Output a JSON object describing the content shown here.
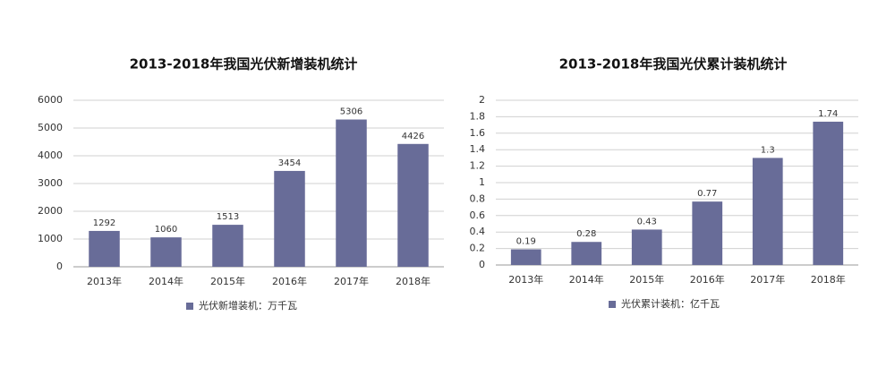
{
  "chart_data": [
    {
      "type": "bar",
      "title": "2013-2018年我国光伏新增装机统计",
      "categories": [
        "2013年",
        "2014年",
        "2015年",
        "2016年",
        "2017年",
        "2018年"
      ],
      "series": [
        {
          "name": "光伏新增装机：万千瓦",
          "color": "#686c98",
          "values": [
            1292,
            1060,
            1513,
            3454,
            5306,
            4426
          ]
        }
      ],
      "ylim": [
        0,
        6000
      ],
      "yticks": [
        0,
        1000,
        2000,
        3000,
        4000,
        5000,
        6000
      ],
      "grid": true,
      "legend": "bottom"
    },
    {
      "type": "bar",
      "title": "2013-2018年我国光伏累计装机统计",
      "categories": [
        "2013年",
        "2014年",
        "2015年",
        "2016年",
        "2017年",
        "2018年"
      ],
      "series": [
        {
          "name": "光伏累计装机：亿千瓦",
          "color": "#686c98",
          "values": [
            0.19,
            0.28,
            0.43,
            0.77,
            1.3,
            1.74
          ]
        }
      ],
      "ylim": [
        0,
        2
      ],
      "yticks": [
        0,
        0.2,
        0.4,
        0.6,
        0.8,
        1,
        1.2,
        1.4,
        1.6,
        1.8,
        2
      ],
      "grid": true,
      "legend": "bottom"
    }
  ]
}
